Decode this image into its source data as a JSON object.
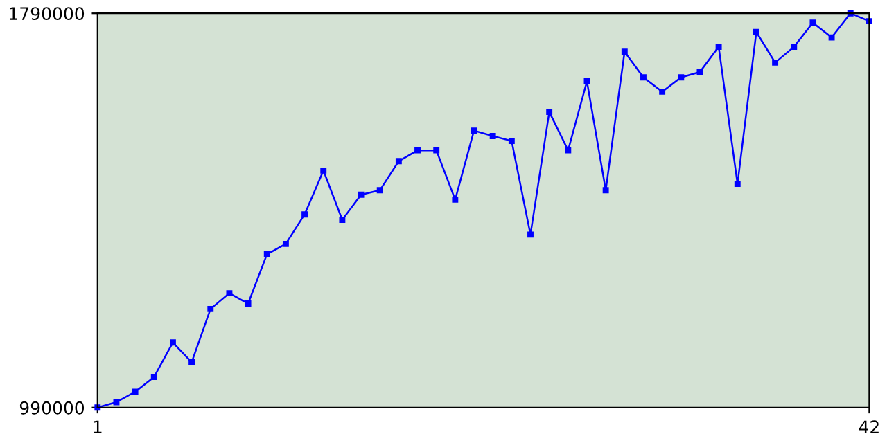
{
  "chart_data": {
    "type": "line",
    "x": [
      1,
      2,
      3,
      4,
      5,
      6,
      7,
      8,
      9,
      10,
      11,
      12,
      13,
      14,
      15,
      16,
      17,
      18,
      19,
      20,
      21,
      22,
      23,
      24,
      25,
      26,
      27,
      28,
      29,
      30,
      31,
      32,
      33,
      34,
      35,
      36,
      37,
      38,
      39,
      40,
      41,
      42
    ],
    "series": [
      {
        "color": "#0000ff",
        "values": [
          990000,
          1001000,
          1022000,
          1052000,
          1122000,
          1082000,
          1190000,
          1222000,
          1201000,
          1301000,
          1322000,
          1382000,
          1471000,
          1371000,
          1422000,
          1431000,
          1490000,
          1512000,
          1512000,
          1412000,
          1552000,
          1541000,
          1531000,
          1341000,
          1590000,
          1512000,
          1652000,
          1431000,
          1712000,
          1660000,
          1631000,
          1660000,
          1671000,
          1722000,
          1444000,
          1752000,
          1690000,
          1722000,
          1771000,
          1741000,
          1790000,
          1774000
        ]
      }
    ],
    "xlim": [
      1,
      42
    ],
    "xticks": [
      1,
      42
    ],
    "ylim": [
      990000,
      1790000
    ],
    "yticks": [
      990000,
      1790000
    ],
    "marker": "square",
    "line_style": "solid",
    "grid": false
  }
}
